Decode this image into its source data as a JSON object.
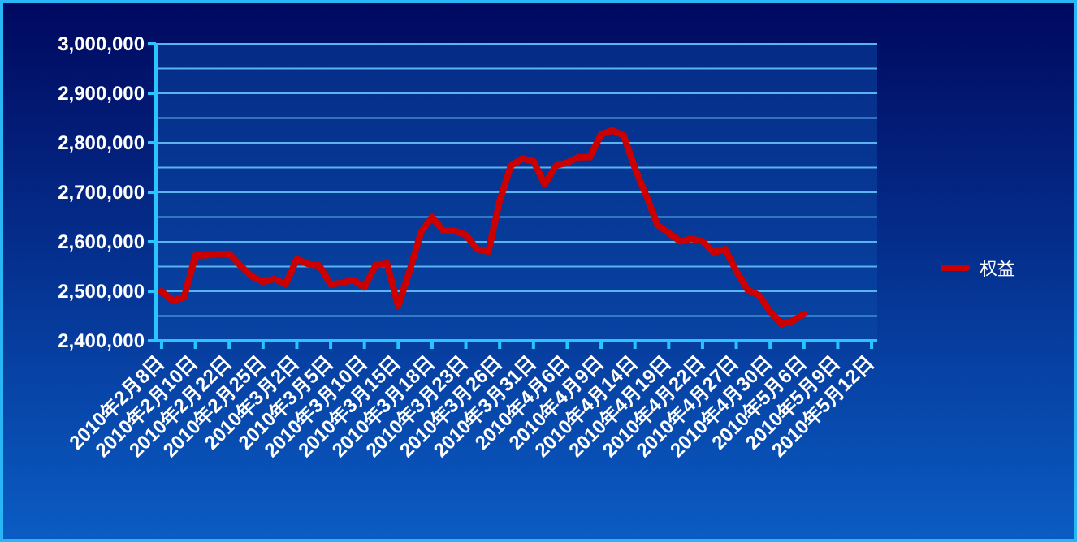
{
  "chart_data": {
    "type": "line",
    "categories": [
      "2010年2月8日",
      null,
      null,
      "2010年2月10日",
      null,
      null,
      "2010年2月22日",
      null,
      null,
      "2010年2月25日",
      null,
      null,
      "2010年3月2日",
      null,
      null,
      "2010年3月5日",
      null,
      null,
      "2010年3月10日",
      null,
      null,
      "2010年3月15日",
      null,
      null,
      "2010年3月18日",
      null,
      null,
      "2010年3月23日",
      null,
      null,
      "2010年3月26日",
      null,
      null,
      "2010年3月31日",
      null,
      null,
      "2010年4月6日",
      null,
      null,
      "2010年4月9日",
      null,
      null,
      "2010年4月14日",
      null,
      null,
      "2010年4月19日",
      null,
      null,
      "2010年4月22日",
      null,
      null,
      "2010年4月27日",
      null,
      null,
      "2010年4月30日",
      null,
      null,
      "2010年5月6日",
      null,
      null,
      "2010年5月9日",
      null,
      null,
      "2010年5月12日"
    ],
    "series": [
      {
        "name": "权益",
        "color": "#cc0000",
        "values": [
          2500000,
          2481000,
          2488000,
          2572000,
          2573000,
          2575000,
          2576000,
          2552000,
          2530000,
          2519000,
          2525000,
          2514000,
          2565000,
          2555000,
          2552000,
          2514000,
          2517000,
          2523000,
          2508000,
          2553000,
          2556000,
          2470000,
          2541000,
          2618000,
          2650000,
          2622000,
          2622000,
          2614000,
          2585000,
          2580000,
          2683000,
          2754000,
          2768000,
          2763000,
          2716000,
          2754000,
          2760000,
          2771000,
          2771000,
          2817000,
          2825000,
          2815000,
          2749000,
          2694000,
          2634000,
          2618000,
          2601000,
          2606000,
          2601000,
          2578000,
          2585000,
          2541000,
          2503000,
          2492000,
          2459000,
          2434000,
          2440000,
          2454000,
          null,
          null,
          null,
          null,
          null,
          null
        ]
      }
    ],
    "ylim": [
      2400000,
      3000000
    ],
    "yticks": [
      {
        "value": 2400000,
        "label": "2,400,000"
      },
      {
        "value": 2450000,
        "label": null
      },
      {
        "value": 2500000,
        "label": "2,500,000"
      },
      {
        "value": 2550000,
        "label": null
      },
      {
        "value": 2600000,
        "label": "2,600,000"
      },
      {
        "value": 2650000,
        "label": null
      },
      {
        "value": 2700000,
        "label": "2,700,000"
      },
      {
        "value": 2750000,
        "label": null
      },
      {
        "value": 2800000,
        "label": "2,800,000"
      },
      {
        "value": 2850000,
        "label": null
      },
      {
        "value": 2900000,
        "label": "2,900,000"
      },
      {
        "value": 2950000,
        "label": null
      },
      {
        "value": 3000000,
        "label": "3,000,000"
      }
    ],
    "grid": true,
    "legend": "right",
    "marker": "none",
    "line_style": "solid"
  }
}
